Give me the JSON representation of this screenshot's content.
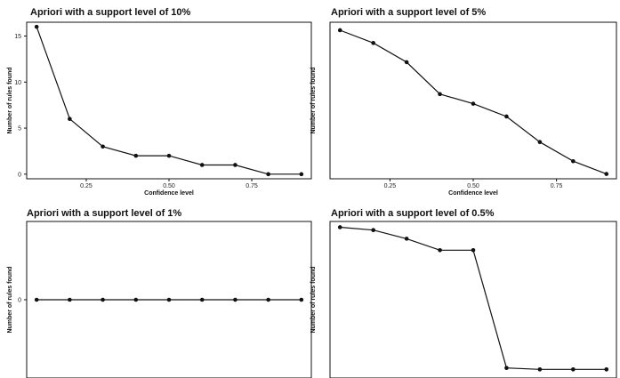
{
  "chart_data": [
    {
      "type": "line",
      "title": "Apriori with a support level of 10%",
      "xlabel": "Confidence level",
      "ylabel": "Number of rules found",
      "x": [
        0.1,
        0.2,
        0.3,
        0.4,
        0.5,
        0.6,
        0.7,
        0.8,
        0.9
      ],
      "y": [
        16,
        6,
        3,
        2,
        2,
        1,
        1,
        0,
        0
      ],
      "xlim": [
        0.07,
        0.93
      ],
      "ylim": [
        -0.5,
        16.5
      ],
      "xticks": [
        0.25,
        0.5,
        0.75
      ],
      "xtick_labels": [
        "0.25",
        "0.50",
        "0.75"
      ],
      "yticks": [
        0,
        5,
        10,
        15
      ],
      "ytick_labels": [
        "0",
        "5",
        "10",
        "15"
      ],
      "grid": false
    },
    {
      "type": "line",
      "title": "Apriori with a support level of 5%",
      "xlabel": "Confidence level",
      "ylabel": "Number of rules found",
      "x": [
        0.1,
        0.2,
        0.3,
        0.4,
        0.5,
        0.6,
        0.7,
        0.8,
        0.9
      ],
      "y": [
        45,
        41,
        35,
        25,
        22,
        18,
        10,
        4,
        0
      ],
      "xlim": [
        0.07,
        0.93
      ],
      "ylim": [
        -1.5,
        47.5
      ],
      "xticks": [
        0.25,
        0.5,
        0.75
      ],
      "xtick_labels": [
        "0.25",
        "0.50",
        "0.75"
      ],
      "yticks": [],
      "ytick_labels": [],
      "grid": false
    },
    {
      "type": "line",
      "title": "Apriori with a support level of 1%",
      "xlabel": "",
      "ylabel": "Number of rules found",
      "x": [
        0.1,
        0.2,
        0.3,
        0.4,
        0.5,
        0.6,
        0.7,
        0.8,
        0.9
      ],
      "y": [
        0,
        0,
        0,
        0,
        0,
        0,
        0,
        0,
        0
      ],
      "xlim": [
        0.07,
        0.93
      ],
      "ylim": [
        -1,
        1
      ],
      "xticks": [],
      "xtick_labels": [],
      "yticks": [
        0
      ],
      "ytick_labels": [
        "0"
      ],
      "grid": false
    },
    {
      "type": "line",
      "title": "Apriori with a support level of 0.5%",
      "xlabel": "",
      "ylabel": "Number of rules found",
      "x": [
        0.1,
        0.2,
        0.3,
        0.4,
        0.5,
        0.6,
        0.7,
        0.8,
        0.9
      ],
      "y": [
        100,
        98,
        92,
        84,
        84,
        2,
        1,
        1,
        1
      ],
      "xlim": [
        0.07,
        0.93
      ],
      "ylim": [
        -5,
        104
      ],
      "xticks": [],
      "xtick_labels": [],
      "yticks": [],
      "ytick_labels": [],
      "grid": false
    }
  ]
}
